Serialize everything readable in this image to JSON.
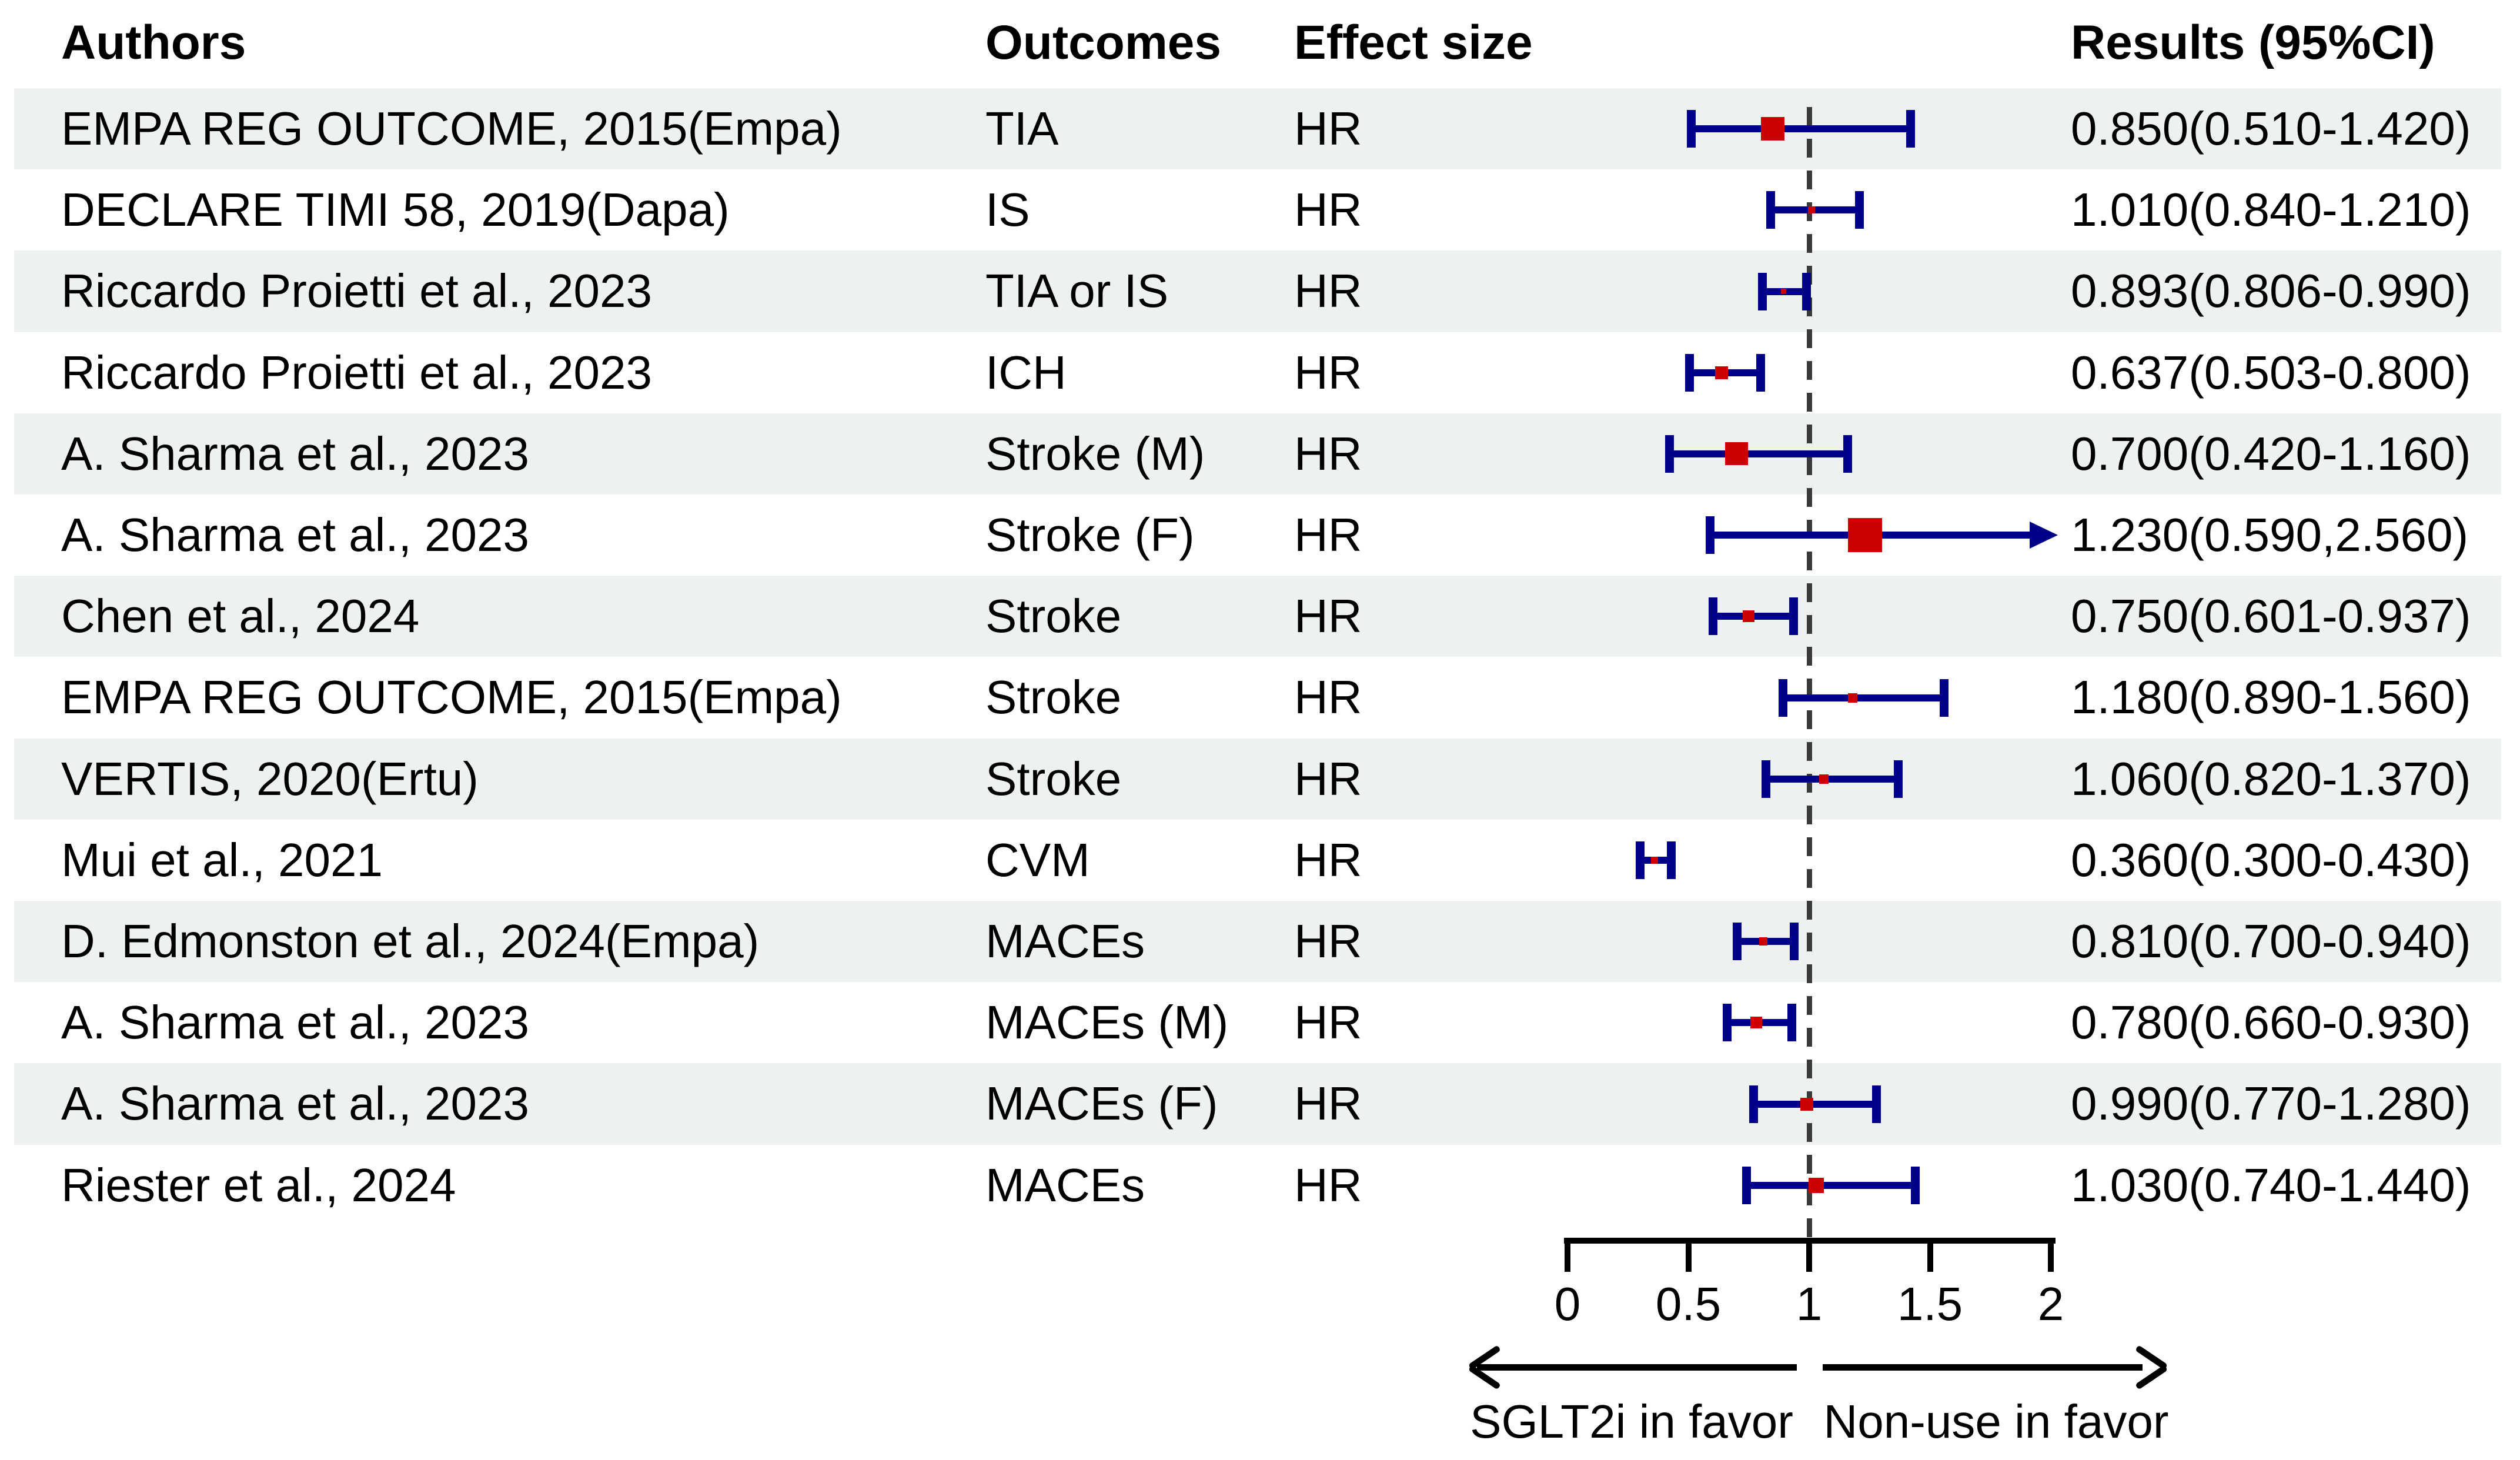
{
  "header": {
    "authors": "Authors",
    "outcomes": "Outcomes",
    "effect_size": "Effect size",
    "results": "Results (95%CI)"
  },
  "footer": {
    "left_label": "SGLT2i in favor",
    "right_label": "Non-use in favor"
  },
  "colors": {
    "ci_bar": "#00008b",
    "marker": "#cc0000",
    "alt_row_background": "#edf1f0",
    "reference_line": "#3a3a3a",
    "axis": "#000000",
    "text": "#000000"
  },
  "chart_data": {
    "type": "scatter",
    "subtype": "forest_plot",
    "effect_measure": "HR",
    "x_axis": {
      "range": [
        0,
        2
      ],
      "ticks": [
        "0",
        "0.5",
        "1",
        "1.5",
        "2"
      ],
      "tick_values": [
        0,
        0.5,
        1,
        1.5,
        2
      ],
      "reference_line": 1
    },
    "direction_labels": {
      "left": "SGLT2i in favor",
      "right": "Non-use in favor"
    },
    "studies": [
      {
        "author": "EMPA REG OUTCOME, 2015(Empa)",
        "outcome": "TIA",
        "effect_size": "HR",
        "result": "0.850(0.510-1.420)",
        "estimate": 0.85,
        "ci_lower": 0.51,
        "ci_upper": 1.42,
        "marker_px": 40,
        "ci_clipped_right": false
      },
      {
        "author": "DECLARE TIMI 58, 2019(Dapa)",
        "outcome": "IS",
        "effect_size": "HR",
        "result": "1.010(0.840-1.210)",
        "estimate": 1.01,
        "ci_lower": 0.84,
        "ci_upper": 1.21,
        "marker_px": 12,
        "ci_clipped_right": false
      },
      {
        "author": "Riccardo Proietti et al., 2023",
        "outcome": "TIA or IS",
        "effect_size": "HR",
        "result": "0.893(0.806-0.990)",
        "estimate": 0.893,
        "ci_lower": 0.806,
        "ci_upper": 0.99,
        "marker_px": 9,
        "ci_clipped_right": false
      },
      {
        "author": "Riccardo Proietti et al., 2023",
        "outcome": "ICH",
        "effect_size": "HR",
        "result": "0.637(0.503-0.800)",
        "estimate": 0.637,
        "ci_lower": 0.503,
        "ci_upper": 0.8,
        "marker_px": 22,
        "ci_clipped_right": false
      },
      {
        "author": "A. Sharma et al., 2023",
        "outcome": "Stroke (M)",
        "effect_size": "HR",
        "result": "0.700(0.420-1.160)",
        "estimate": 0.7,
        "ci_lower": 0.42,
        "ci_upper": 1.16,
        "marker_px": 39,
        "ci_clipped_right": false
      },
      {
        "author": "A. Sharma et al., 2023",
        "outcome": "Stroke (F)",
        "effect_size": "HR",
        "result": "1.230(0.590,2.560)",
        "estimate": 1.23,
        "ci_lower": 0.59,
        "ci_upper": 2.56,
        "marker_px": 58,
        "ci_clipped_right": true
      },
      {
        "author": "Chen et al., 2024",
        "outcome": "Stroke",
        "effect_size": "HR",
        "result": "0.750(0.601-0.937)",
        "estimate": 0.75,
        "ci_lower": 0.601,
        "ci_upper": 0.937,
        "marker_px": 20,
        "ci_clipped_right": false
      },
      {
        "author": "EMPA REG OUTCOME, 2015(Empa)",
        "outcome": "Stroke",
        "effect_size": "HR",
        "result": "1.180(0.890-1.560)",
        "estimate": 1.18,
        "ci_lower": 0.89,
        "ci_upper": 1.56,
        "marker_px": 16,
        "ci_clipped_right": false
      },
      {
        "author": "VERTIS, 2020(Ertu)",
        "outcome": "Stroke",
        "effect_size": "HR",
        "result": "1.060(0.820-1.370)",
        "estimate": 1.06,
        "ci_lower": 0.82,
        "ci_upper": 1.37,
        "marker_px": 16,
        "ci_clipped_right": false
      },
      {
        "author": "Mui et al., 2021",
        "outcome": "CVM",
        "effect_size": "HR",
        "result": "0.360(0.300-0.430)",
        "estimate": 0.36,
        "ci_lower": 0.3,
        "ci_upper": 0.43,
        "marker_px": 12,
        "ci_clipped_right": false
      },
      {
        "author": "D. Edmonston et al., 2024(Empa)",
        "outcome": "MACEs",
        "effect_size": "HR",
        "result": "0.810(0.700-0.940)",
        "estimate": 0.81,
        "ci_lower": 0.7,
        "ci_upper": 0.94,
        "marker_px": 14,
        "ci_clipped_right": false
      },
      {
        "author": "A. Sharma et al., 2023",
        "outcome": "MACEs (M)",
        "effect_size": "HR",
        "result": "0.780(0.660-0.930)",
        "estimate": 0.78,
        "ci_lower": 0.66,
        "ci_upper": 0.93,
        "marker_px": 20,
        "ci_clipped_right": false
      },
      {
        "author": "A. Sharma et al., 2023",
        "outcome": "MACEs (F)",
        "effect_size": "HR",
        "result": "0.990(0.770-1.280)",
        "estimate": 0.99,
        "ci_lower": 0.77,
        "ci_upper": 1.28,
        "marker_px": 22,
        "ci_clipped_right": false
      },
      {
        "author": "Riester et al., 2024",
        "outcome": "MACEs",
        "effect_size": "HR",
        "result": "1.030(0.740-1.440)",
        "estimate": 1.03,
        "ci_lower": 0.74,
        "ci_upper": 1.44,
        "marker_px": 26,
        "ci_clipped_right": false
      }
    ]
  }
}
